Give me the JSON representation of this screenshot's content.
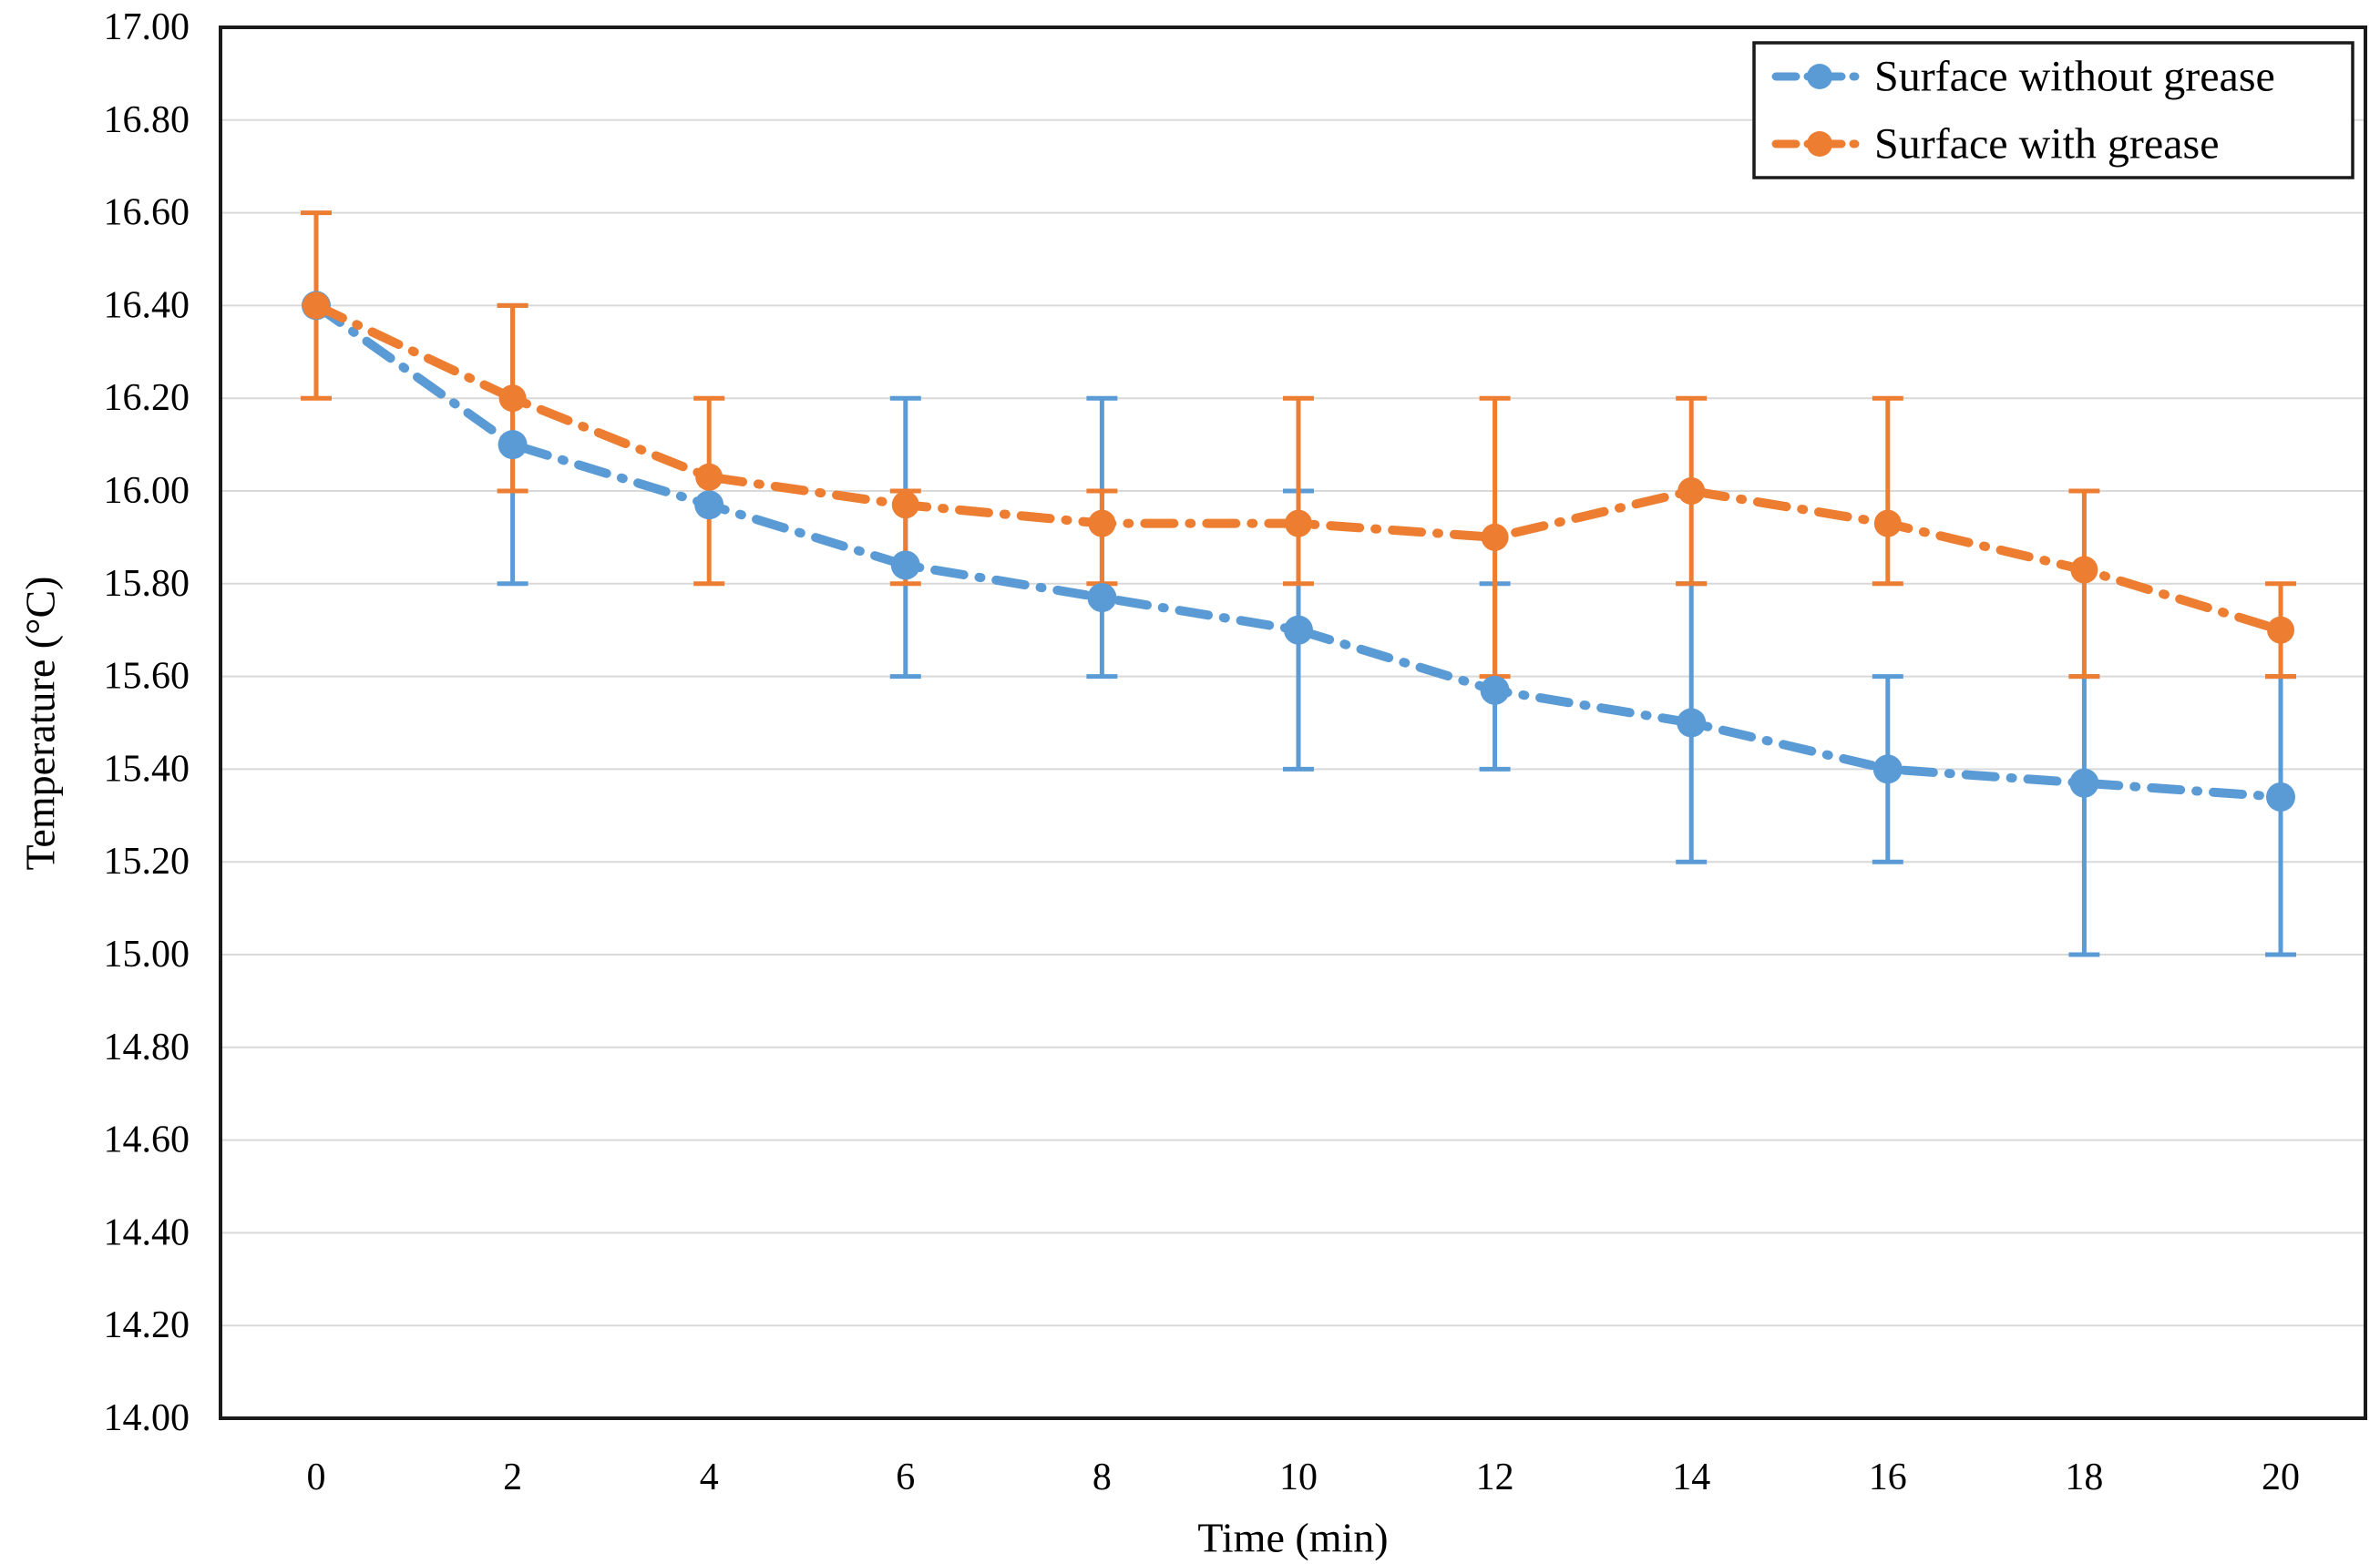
{
  "chart_data": {
    "type": "line",
    "title": "",
    "xlabel": "Time (min)",
    "ylabel": "Temperature (°C)",
    "x": [
      0,
      2,
      4,
      6,
      8,
      10,
      12,
      14,
      16,
      18,
      20
    ],
    "xtick_labels": [
      "0",
      "2",
      "4",
      "6",
      "8",
      "10",
      "12",
      "14",
      "16",
      "18",
      "20"
    ],
    "ytick_labels": [
      "17.00",
      "16.80",
      "16.60",
      "16.40",
      "16.20",
      "16.00",
      "15.80",
      "15.60",
      "15.40",
      "15.20",
      "15.00",
      "14.80",
      "14.60",
      "14.40",
      "14.20",
      "14.00"
    ],
    "ylim": [
      14.0,
      17.0
    ],
    "ytick_step": 0.2,
    "grid": true,
    "legend_position": "top-right",
    "marker": "circle",
    "line_style": "dash-dot",
    "series": [
      {
        "name": "Surface without grease",
        "color": "#5B9BD5",
        "values": [
          16.4,
          16.1,
          15.97,
          15.84,
          15.77,
          15.7,
          15.57,
          15.5,
          15.4,
          15.37,
          15.34
        ],
        "error_bars": [
          null,
          [
            15.8,
            16.4
          ],
          null,
          [
            15.6,
            16.2
          ],
          [
            15.6,
            16.2
          ],
          [
            15.4,
            16.0
          ],
          [
            15.4,
            15.8
          ],
          [
            15.2,
            15.8
          ],
          [
            15.2,
            15.6
          ],
          [
            15.0,
            15.6
          ],
          [
            15.0,
            15.6
          ]
        ]
      },
      {
        "name": "Surface with grease",
        "color": "#ED7D31",
        "values": [
          16.4,
          16.2,
          16.03,
          15.97,
          15.93,
          15.93,
          15.9,
          16.0,
          15.93,
          15.83,
          15.7
        ],
        "error_bars": [
          [
            16.2,
            16.6
          ],
          [
            16.0,
            16.4
          ],
          [
            15.8,
            16.2
          ],
          [
            15.8,
            16.0
          ],
          [
            15.8,
            16.0
          ],
          [
            15.8,
            16.2
          ],
          [
            15.6,
            16.2
          ],
          [
            15.8,
            16.2
          ],
          [
            15.8,
            16.2
          ],
          [
            15.6,
            16.0
          ],
          [
            15.6,
            15.8
          ]
        ]
      }
    ],
    "colors": {
      "gridline": "#D9D9D9",
      "axis": "#1A1A1A",
      "background": "#FFFFFF",
      "text": "#000000"
    }
  }
}
